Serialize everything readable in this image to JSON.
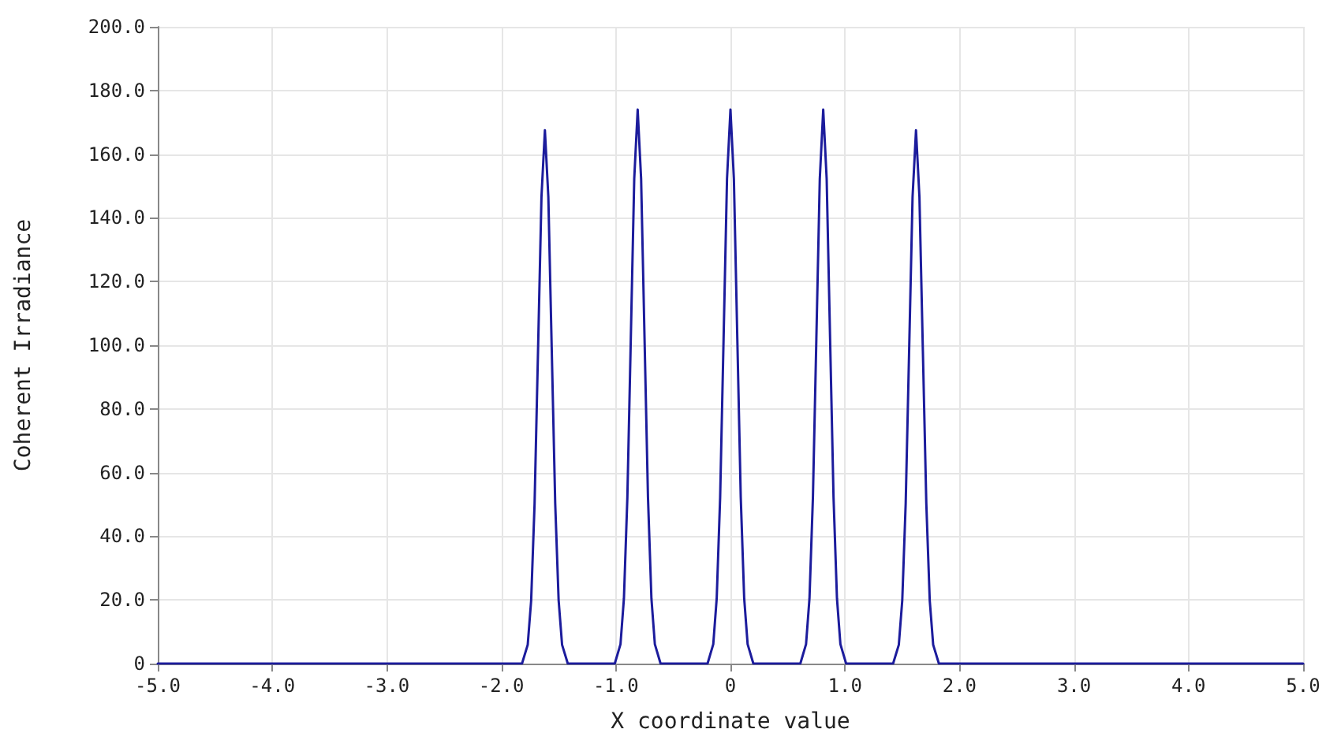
{
  "chart_data": {
    "type": "line",
    "xlabel": "X coordinate value",
    "ylabel": "Coherent Irradiance",
    "xlim": [
      -5,
      5
    ],
    "ylim": [
      0,
      200
    ],
    "xticks": [
      {
        "value": -5,
        "label": "-5.0"
      },
      {
        "value": -4,
        "label": "-4.0"
      },
      {
        "value": -3,
        "label": "-3.0"
      },
      {
        "value": -2,
        "label": "-2.0"
      },
      {
        "value": -1,
        "label": "-1.0"
      },
      0,
      {
        "value": 1,
        "label": "1.0"
      },
      {
        "value": 2,
        "label": "2.0"
      },
      {
        "value": 3,
        "label": "3.0"
      },
      {
        "value": 4,
        "label": "4.0"
      },
      {
        "value": 5,
        "label": "5.0"
      }
    ],
    "yticks": [
      0,
      {
        "value": 20,
        "label": "20.0"
      },
      {
        "value": 40,
        "label": "40.0"
      },
      {
        "value": 60,
        "label": "60.0"
      },
      {
        "value": 80,
        "label": "80.0"
      },
      {
        "value": 100,
        "label": "100.0"
      },
      {
        "value": 120,
        "label": "120.0"
      },
      {
        "value": 140,
        "label": "140.0"
      },
      {
        "value": 160,
        "label": "160.0"
      },
      {
        "value": 180,
        "label": "180.0"
      },
      {
        "value": 200,
        "label": "200.0"
      }
    ],
    "grid": true,
    "marker": "none",
    "line_style": "solid",
    "series": [
      {
        "color": "#1c1c9c",
        "x": [
          -5,
          -1.82,
          -1.77,
          -1.74,
          -1.71,
          -1.68,
          -1.65,
          -1.62,
          -1.59,
          -1.56,
          -1.53,
          -1.5,
          -1.47,
          -1.42,
          -1.01,
          -0.96,
          -0.93,
          -0.9,
          -0.87,
          -0.84,
          -0.81,
          -0.78,
          -0.75,
          -0.72,
          -0.69,
          -0.66,
          -0.61,
          -0.2,
          -0.15,
          -0.12,
          -0.09,
          -0.06,
          -0.03,
          0,
          0.03,
          0.06,
          0.09,
          0.12,
          0.15,
          0.2,
          0.61,
          0.66,
          0.69,
          0.72,
          0.75,
          0.78,
          0.81,
          0.84,
          0.87,
          0.9,
          0.93,
          0.96,
          1.01,
          1.42,
          1.47,
          1.5,
          1.53,
          1.56,
          1.59,
          1.62,
          1.65,
          1.68,
          1.71,
          1.74,
          1.77,
          1.82,
          5
        ],
        "values": [
          0,
          0,
          5.9,
          19.8,
          50.3,
          98.2,
          146.6,
          167.5,
          146.6,
          98.2,
          50.3,
          19.8,
          5.9,
          0,
          0,
          6.1,
          20.5,
          52.2,
          102,
          152.3,
          174,
          152.3,
          102,
          52.2,
          20.5,
          6.1,
          0,
          0,
          6.1,
          20.5,
          52.2,
          102,
          152.3,
          174,
          152.3,
          102,
          52.2,
          20.5,
          6.1,
          0,
          0,
          6.1,
          20.5,
          52.2,
          102,
          152.3,
          174,
          152.3,
          102,
          52.2,
          20.5,
          6.1,
          0,
          0,
          5.9,
          19.8,
          50.3,
          98.2,
          146.6,
          167.5,
          146.6,
          98.2,
          50.3,
          19.8,
          5.9,
          0,
          0
        ]
      }
    ]
  }
}
